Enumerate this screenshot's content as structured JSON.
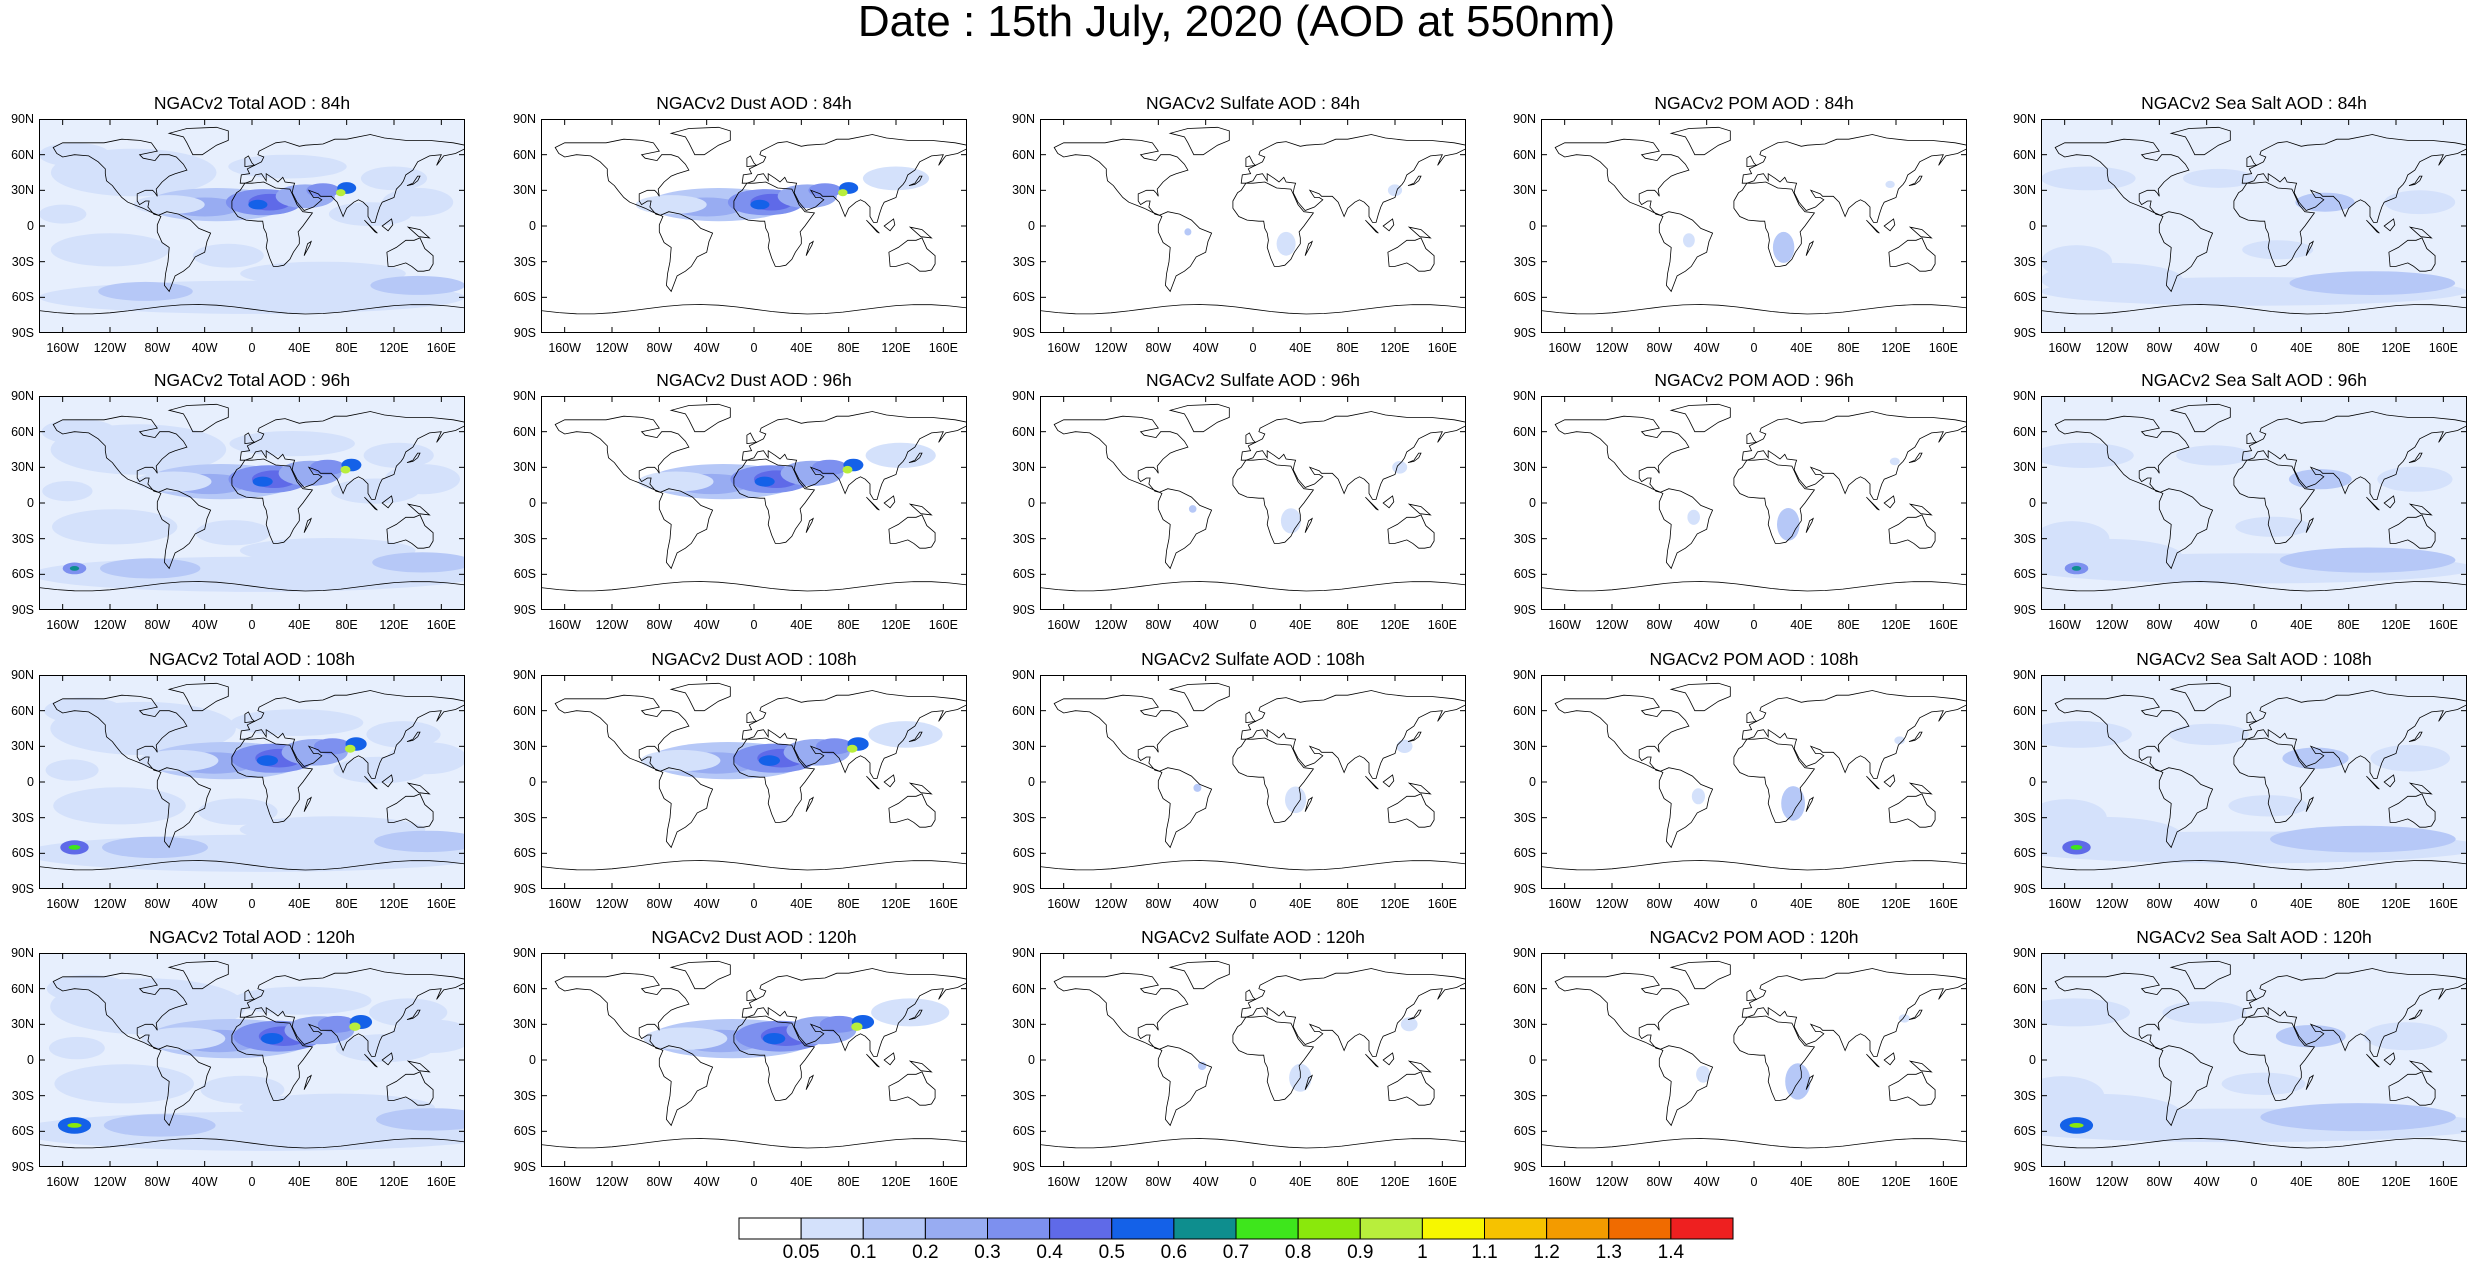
{
  "title": "Date : 15th July, 2020 (AOD at 550nm)",
  "rows": [
    "84h",
    "96h",
    "108h",
    "120h"
  ],
  "columns": [
    "Total",
    "Dust",
    "Sulfate",
    "POM",
    "Sea Salt"
  ],
  "panels": [
    [
      "NGACv2 Total AOD : 84h",
      "NGACv2 Dust AOD : 84h",
      "NGACv2 Sulfate AOD : 84h",
      "NGACv2 POM AOD : 84h",
      "NGACv2 Sea Salt AOD : 84h"
    ],
    [
      "NGACv2 Total AOD : 96h",
      "NGACv2 Dust AOD : 96h",
      "NGACv2 Sulfate AOD : 96h",
      "NGACv2 POM AOD : 96h",
      "NGACv2 Sea Salt AOD : 96h"
    ],
    [
      "NGACv2 Total AOD : 108h",
      "NGACv2 Dust AOD : 108h",
      "NGACv2 Sulfate AOD : 108h",
      "NGACv2 POM AOD : 108h",
      "NGACv2 Sea Salt AOD : 108h"
    ],
    [
      "NGACv2 Total AOD : 120h",
      "NGACv2 Dust AOD : 120h",
      "NGACv2 Sulfate AOD : 120h",
      "NGACv2 POM AOD : 120h",
      "NGACv2 Sea Salt  AOD : 120h"
    ]
  ],
  "lat_labels": [
    "90N",
    "60N",
    "30N",
    "0",
    "30S",
    "60S",
    "90S"
  ],
  "lon_labels": [
    "160W",
    "120W",
    "80W",
    "40W",
    "0",
    "40E",
    "80E",
    "120E",
    "160E"
  ],
  "colorbar": {
    "levels": [
      "0.05",
      "0.1",
      "0.2",
      "0.3",
      "0.4",
      "0.5",
      "0.6",
      "0.7",
      "0.8",
      "0.9",
      "1",
      "1.1",
      "1.2",
      "1.3",
      "1.4"
    ],
    "colors": [
      "#ffffff",
      "#d4e1fb",
      "#b6c8f7",
      "#98acf2",
      "#7d90ef",
      "#5f6ae8",
      "#1461e8",
      "#0e8e8e",
      "#3ee61c",
      "#8ae80c",
      "#b8ee3c",
      "#f7f700",
      "#f6c200",
      "#f39b00",
      "#f06b00",
      "#ee2020"
    ]
  }
}
